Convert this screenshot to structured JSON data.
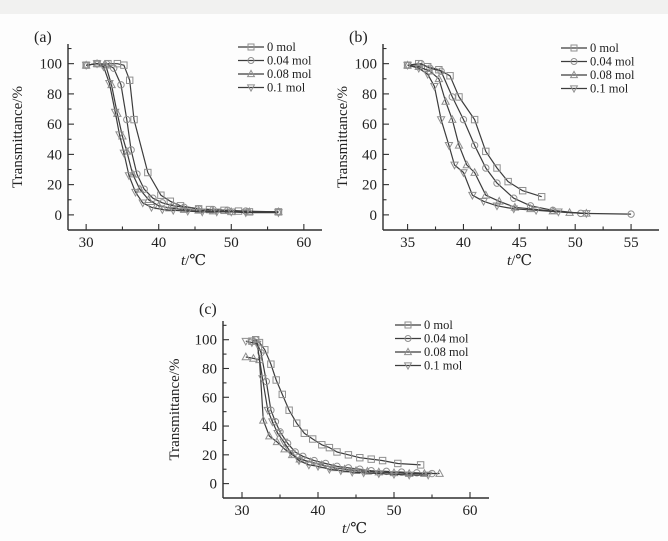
{
  "figure": {
    "description_note": "Three transmittance vs temperature curves figure",
    "background": "#fdfdfd"
  },
  "colors": {
    "line": "#3c3c3c",
    "marker": "#8f8f8f",
    "axis": "#2f2f2f",
    "text": "#222222"
  },
  "chart_data": [
    {
      "type": "line",
      "panel_label": "(a)",
      "xlabel_t": "t",
      "xlabel_unit": "/℃",
      "ylabel": "Transmittance/%",
      "xlim": [
        27.5,
        62.5
      ],
      "ylim": [
        -10,
        113
      ],
      "xticks": [
        30,
        40,
        50,
        60
      ],
      "xminor": [
        35,
        45,
        55
      ],
      "yticks": [
        0,
        20,
        40,
        60,
        80,
        100
      ],
      "yminor": [
        10,
        30,
        50,
        70,
        90,
        110
      ],
      "grid": false,
      "legend_position": "top-right",
      "series": [
        {
          "name": "0 mol",
          "marker": "square",
          "points": [
            [
              30,
              99
            ],
            [
              31.5,
              100
            ],
            [
              33,
              100
            ],
            [
              34.3,
              100
            ],
            [
              35.2,
              99
            ],
            [
              36,
              89
            ],
            [
              36.6,
              63
            ],
            [
              38.5,
              28
            ],
            [
              40.3,
              13
            ],
            [
              41.6,
              9
            ],
            [
              43,
              6
            ],
            [
              45.5,
              4
            ],
            [
              47,
              3.5
            ],
            [
              49,
              3
            ],
            [
              51,
              2.5
            ],
            [
              52.5,
              2
            ],
            [
              56.5,
              2
            ]
          ]
        },
        {
          "name": "0.04 mol",
          "marker": "circle",
          "points": [
            [
              30,
              99
            ],
            [
              31.5,
              100
            ],
            [
              32.8,
              100
            ],
            [
              33.8,
              97
            ],
            [
              34.8,
              86
            ],
            [
              35.6,
              63
            ],
            [
              36.2,
              43
            ],
            [
              37,
              27
            ],
            [
              38,
              17
            ],
            [
              39.2,
              11
            ],
            [
              40.5,
              8
            ],
            [
              42,
              6
            ],
            [
              43.5,
              5
            ],
            [
              45.5,
              4
            ],
            [
              47.5,
              3.5
            ],
            [
              49.5,
              3
            ],
            [
              52,
              2.5
            ],
            [
              56.5,
              2
            ]
          ]
        },
        {
          "name": "0.08 mol",
          "marker": "triangle-up",
          "points": [
            [
              30,
              99
            ],
            [
              31.5,
              100
            ],
            [
              32.7,
              99
            ],
            [
              33.5,
              86
            ],
            [
              34.3,
              67
            ],
            [
              35,
              52
            ],
            [
              35.6,
              42
            ],
            [
              36.4,
              27
            ],
            [
              37.4,
              17
            ],
            [
              38.6,
              10
            ],
            [
              40,
              6
            ],
            [
              41.5,
              4.5
            ],
            [
              43.5,
              3.5
            ],
            [
              45.5,
              3
            ],
            [
              47.5,
              2.5
            ],
            [
              50,
              2
            ],
            [
              52.5,
              2
            ],
            [
              56.5,
              2
            ]
          ]
        },
        {
          "name": "0.1 mol",
          "marker": "triangle-down",
          "points": [
            [
              30,
              99
            ],
            [
              31.5,
              100
            ],
            [
              32.4,
              98
            ],
            [
              33.2,
              87
            ],
            [
              34,
              68
            ],
            [
              34.6,
              53
            ],
            [
              35.2,
              41
            ],
            [
              35.9,
              26
            ],
            [
              36.8,
              15
            ],
            [
              37.8,
              8
            ],
            [
              39,
              5
            ],
            [
              40.5,
              3.5
            ],
            [
              42,
              3
            ],
            [
              44,
              2.5
            ],
            [
              46,
              2
            ],
            [
              48,
              2
            ],
            [
              50,
              2
            ],
            [
              52,
              1.5
            ],
            [
              56.5,
              1.5
            ]
          ]
        }
      ]
    },
    {
      "type": "line",
      "panel_label": "(b)",
      "xlabel_t": "t",
      "xlabel_unit": "/℃",
      "ylabel": "Transmittance/%",
      "xlim": [
        32.8,
        57.5
      ],
      "ylim": [
        -10,
        113
      ],
      "xticks": [
        35,
        40,
        45,
        50,
        55
      ],
      "xminor": [
        37.5,
        42.5,
        47.5,
        52.5
      ],
      "yticks": [
        0,
        20,
        40,
        60,
        80,
        100
      ],
      "yminor": [
        10,
        30,
        50,
        70,
        90,
        110
      ],
      "grid": false,
      "legend_position": "top-right",
      "series": [
        {
          "name": "0 mol",
          "marker": "square",
          "points": [
            [
              35,
              99
            ],
            [
              36,
              100
            ],
            [
              36.8,
              98
            ],
            [
              37.8,
              96
            ],
            [
              38.8,
              92
            ],
            [
              39.6,
              78
            ],
            [
              41,
              63
            ],
            [
              42,
              42
            ],
            [
              43,
              31
            ],
            [
              44,
              22
            ],
            [
              45.3,
              16
            ],
            [
              47,
              12
            ]
          ]
        },
        {
          "name": "0.04 mol",
          "marker": "circle",
          "points": [
            [
              35,
              99
            ],
            [
              36.2,
              100
            ],
            [
              37,
              97
            ],
            [
              38,
              95
            ],
            [
              39,
              78
            ],
            [
              40,
              63
            ],
            [
              41,
              46
            ],
            [
              42,
              31
            ],
            [
              43,
              21
            ],
            [
              44.5,
              11
            ],
            [
              46,
              6
            ],
            [
              48,
              3
            ],
            [
              50.5,
              1
            ],
            [
              55,
              0.5
            ]
          ]
        },
        {
          "name": "0.08 mol",
          "marker": "triangle-up",
          "points": [
            [
              35,
              99
            ],
            [
              36,
              98
            ],
            [
              37,
              95
            ],
            [
              37.8,
              90
            ],
            [
              38.4,
              75
            ],
            [
              39,
              63
            ],
            [
              39.6,
              46
            ],
            [
              40.3,
              33
            ],
            [
              41,
              28
            ],
            [
              42,
              13
            ],
            [
              43.2,
              9
            ],
            [
              44.6,
              5
            ],
            [
              46,
              4
            ],
            [
              48,
              2.5
            ],
            [
              49.5,
              1.5
            ],
            [
              51,
              1
            ]
          ]
        },
        {
          "name": "0.1 mol",
          "marker": "triangle-down",
          "points": [
            [
              35,
              99
            ],
            [
              36,
              97
            ],
            [
              36.8,
              93
            ],
            [
              37.4,
              85
            ],
            [
              38,
              63
            ],
            [
              38.7,
              46
            ],
            [
              39.2,
              33
            ],
            [
              40,
              28
            ],
            [
              40.8,
              13
            ],
            [
              41.8,
              9
            ],
            [
              43,
              6
            ],
            [
              44.5,
              4
            ],
            [
              46.5,
              3
            ],
            [
              48.5,
              2
            ],
            [
              51,
              1
            ]
          ]
        }
      ]
    },
    {
      "type": "line",
      "panel_label": "(c)",
      "xlabel_t": "t",
      "xlabel_unit": "/℃",
      "ylabel": "Transmittance/%",
      "xlim": [
        27.5,
        62.5
      ],
      "ylim": [
        -10,
        113
      ],
      "xticks": [
        30,
        40,
        50,
        60
      ],
      "xminor": [
        35,
        45,
        55
      ],
      "yticks": [
        0,
        20,
        40,
        60,
        80,
        100
      ],
      "yminor": [
        10,
        30,
        50,
        70,
        90,
        110
      ],
      "grid": false,
      "legend_position": "top-right",
      "series": [
        {
          "name": "0 mol",
          "marker": "square",
          "points": [
            [
              31.3,
              99
            ],
            [
              31.8,
              100
            ],
            [
              32.3,
              98
            ],
            [
              33,
              93
            ],
            [
              33.8,
              83
            ],
            [
              34.5,
              72
            ],
            [
              35.3,
              62
            ],
            [
              36.2,
              51
            ],
            [
              37.2,
              42
            ],
            [
              38.2,
              35
            ],
            [
              39.3,
              31
            ],
            [
              40.5,
              27
            ],
            [
              41.5,
              25
            ],
            [
              42.5,
              22
            ],
            [
              44,
              20
            ],
            [
              45.5,
              18
            ],
            [
              47,
              17
            ],
            [
              48.5,
              16
            ],
            [
              50.5,
              14
            ],
            [
              53.5,
              13
            ]
          ]
        },
        {
          "name": "0.04 mol",
          "marker": "circle",
          "points": [
            [
              31.3,
              99
            ],
            [
              31.8,
              100
            ],
            [
              32.5,
              91
            ],
            [
              33.2,
              71
            ],
            [
              33.8,
              51
            ],
            [
              34.4,
              43
            ],
            [
              35,
              36
            ],
            [
              36,
              28
            ],
            [
              37,
              22
            ],
            [
              38,
              19
            ],
            [
              39.5,
              16
            ],
            [
              41,
              14
            ],
            [
              42.5,
              12
            ],
            [
              44,
              11
            ],
            [
              45.5,
              10
            ],
            [
              47,
              9
            ],
            [
              49,
              8.5
            ],
            [
              51,
              8
            ],
            [
              53,
              7.5
            ],
            [
              55,
              7
            ]
          ]
        },
        {
          "name": "0.08 mol",
          "marker": "triangle-up",
          "points": [
            [
              30.5,
              88
            ],
            [
              31.5,
              87
            ],
            [
              32.3,
              86
            ],
            [
              32.8,
              44
            ],
            [
              33.6,
              33
            ],
            [
              34.6,
              29
            ],
            [
              35.6,
              24
            ],
            [
              36.6,
              20
            ],
            [
              37.6,
              17
            ],
            [
              39,
              15
            ],
            [
              40.5,
              13
            ],
            [
              42,
              11
            ],
            [
              43.5,
              10
            ],
            [
              45,
              9
            ],
            [
              46.5,
              8.5
            ],
            [
              48,
              8
            ],
            [
              50,
              7.5
            ],
            [
              52,
              7
            ],
            [
              54,
              7
            ],
            [
              56,
              7
            ]
          ]
        },
        {
          "name": "0.1 mol",
          "marker": "triangle-down",
          "points": [
            [
              30.5,
              99
            ],
            [
              31.3,
              98
            ],
            [
              32,
              97
            ],
            [
              32.7,
              73
            ],
            [
              33.4,
              51
            ],
            [
              34,
              43
            ],
            [
              34.7,
              35
            ],
            [
              35.5,
              29
            ],
            [
              36.5,
              21
            ],
            [
              37.5,
              16
            ],
            [
              38.8,
              13
            ],
            [
              40,
              12
            ],
            [
              41.5,
              10
            ],
            [
              43,
              9
            ],
            [
              44.5,
              8
            ],
            [
              46,
              7.5
            ],
            [
              48,
              7
            ],
            [
              50,
              6.5
            ],
            [
              52,
              6
            ],
            [
              54.5,
              6
            ]
          ]
        }
      ]
    }
  ]
}
